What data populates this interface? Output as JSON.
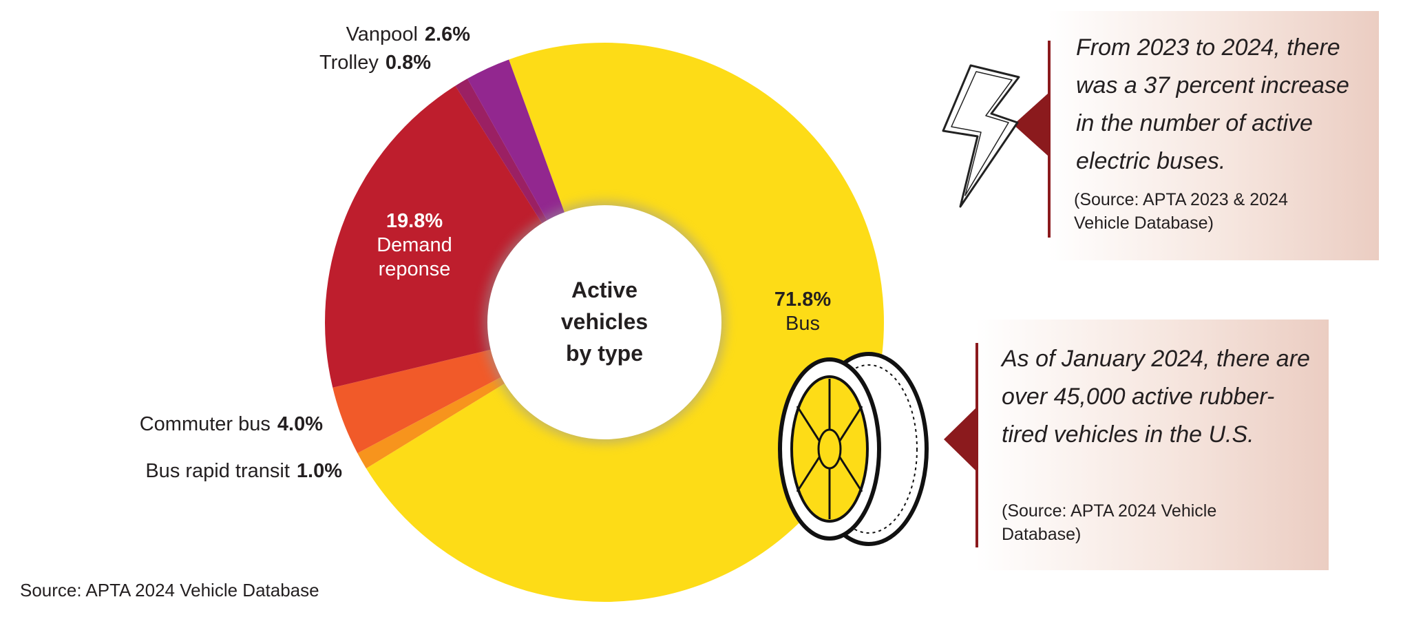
{
  "chart_data": {
    "type": "donut",
    "center_label": "Active vehicles by type",
    "categories": [
      "Bus",
      "Bus rapid transit",
      "Commuter bus",
      "Demand reponse",
      "Trolley",
      "Vanpool"
    ],
    "values": [
      71.8,
      1.0,
      4.0,
      19.8,
      0.8,
      2.6
    ],
    "value_labels": [
      "71.8%",
      "1.0%",
      "4.0%",
      "19.8%",
      "0.8%",
      "2.6%"
    ],
    "colors": [
      "#fddc17",
      "#f7941d",
      "#f15a29",
      "#be1e2d",
      "#9b2063",
      "#92278f"
    ],
    "source": "Source: APTA 2024 Vehicle Database"
  },
  "callouts": [
    {
      "text": "From 2023 to 2024, there was a 37 percent increase in the number of active electric buses.",
      "source": "(Source: APTA 2023 & 2024 Vehicle Database)"
    },
    {
      "text": "As of January 2024, there are over 45,000 active rubber-tired vehicles in the U.S.",
      "source": "(Source: APTA 2024 Vehicle Database)"
    }
  ]
}
